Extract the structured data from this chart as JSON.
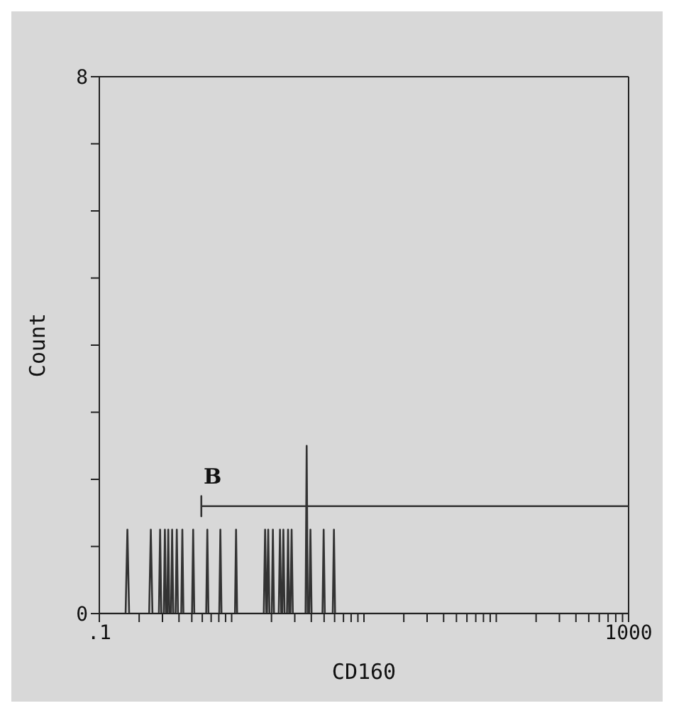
{
  "chart_data": {
    "type": "line",
    "xlabel": "CD160",
    "ylabel": "Count",
    "log": "x",
    "grid": false,
    "marker": "none",
    "line_style": "solid",
    "xlim": [
      0.1,
      1000
    ],
    "ylim": [
      0,
      8
    ],
    "xticks": [
      {
        "value": 0.1,
        "label": ".1"
      },
      {
        "value": 0.2,
        "label": null
      },
      {
        "value": 0.3,
        "label": null
      },
      {
        "value": 0.4,
        "label": null
      },
      {
        "value": 0.5,
        "label": null
      },
      {
        "value": 0.6,
        "label": null
      },
      {
        "value": 0.7,
        "label": null
      },
      {
        "value": 0.8,
        "label": null
      },
      {
        "value": 0.9,
        "label": null
      },
      {
        "value": 1,
        "label": null
      },
      {
        "value": 2,
        "label": null
      },
      {
        "value": 3,
        "label": null
      },
      {
        "value": 4,
        "label": null
      },
      {
        "value": 5,
        "label": null
      },
      {
        "value": 6,
        "label": null
      },
      {
        "value": 7,
        "label": null
      },
      {
        "value": 8,
        "label": null
      },
      {
        "value": 9,
        "label": null
      },
      {
        "value": 10,
        "label": null
      },
      {
        "value": 20,
        "label": null
      },
      {
        "value": 30,
        "label": null
      },
      {
        "value": 40,
        "label": null
      },
      {
        "value": 50,
        "label": null
      },
      {
        "value": 60,
        "label": null
      },
      {
        "value": 70,
        "label": null
      },
      {
        "value": 80,
        "label": null
      },
      {
        "value": 90,
        "label": null
      },
      {
        "value": 100,
        "label": null
      },
      {
        "value": 200,
        "label": null
      },
      {
        "value": 300,
        "label": null
      },
      {
        "value": 400,
        "label": null
      },
      {
        "value": 500,
        "label": null
      },
      {
        "value": 600,
        "label": null
      },
      {
        "value": 700,
        "label": null
      },
      {
        "value": 800,
        "label": null
      },
      {
        "value": 900,
        "label": null
      },
      {
        "value": 1000,
        "label": "1000"
      }
    ],
    "yticks": [
      {
        "value": 0,
        "label": "0"
      },
      {
        "value": 1,
        "label": null
      },
      {
        "value": 2,
        "label": null
      },
      {
        "value": 3,
        "label": null
      },
      {
        "value": 4,
        "label": null
      },
      {
        "value": 5,
        "label": null
      },
      {
        "value": 6,
        "label": null
      },
      {
        "value": 7,
        "label": null
      },
      {
        "value": 8,
        "label": "8"
      }
    ],
    "annotations": [
      {
        "text": "B",
        "x": 0.59,
        "y": 1.6
      }
    ],
    "series": [
      {
        "color": "#333333",
        "x": [
          0.1,
          0.158,
          0.163,
          0.168,
          0.238,
          0.245,
          0.252,
          0.282,
          0.288,
          0.294,
          0.307,
          0.313,
          0.319,
          0.326,
          0.332,
          0.338,
          0.348,
          0.355,
          0.362,
          0.377,
          0.385,
          0.393,
          0.416,
          0.424,
          0.432,
          0.502,
          0.512,
          0.522,
          0.642,
          0.655,
          0.668,
          0.806,
          0.822,
          0.838,
          1.06,
          1.08,
          1.1,
          1.75,
          1.79,
          1.83,
          1.85,
          1.89,
          1.93,
          2.01,
          2.05,
          2.09,
          2.27,
          2.32,
          2.37,
          2.41,
          2.46,
          2.51,
          2.62,
          2.67,
          2.72,
          2.78,
          2.84,
          2.9,
          3.62,
          3.69,
          3.76,
          3.86,
          3.94,
          4.02,
          4.86,
          4.96,
          5.06,
          5.81,
          5.93,
          6.05,
          1000
        ],
        "values": [
          0,
          0,
          1.25,
          0,
          0,
          1.25,
          0,
          0,
          1.25,
          0,
          0,
          1.25,
          0,
          0,
          1.25,
          0,
          0,
          1.25,
          0,
          0,
          1.25,
          0,
          0,
          1.25,
          0,
          0,
          1.25,
          0,
          0,
          1.25,
          0,
          0,
          1.25,
          0,
          0,
          1.25,
          0,
          0,
          1.25,
          0,
          0,
          1.25,
          0,
          0,
          1.25,
          0,
          0,
          1.25,
          0,
          0,
          1.25,
          0,
          0,
          1.25,
          0,
          0,
          1.25,
          0,
          0,
          2.5,
          0,
          0,
          1.25,
          0,
          0,
          1.25,
          0,
          0,
          1.25,
          0,
          0
        ]
      },
      {
        "color": "#333333",
        "x": [
          0.59,
          0.59,
          0.59,
          1000
        ],
        "values": [
          1.45,
          1.75,
          1.6,
          1.6
        ]
      }
    ]
  }
}
